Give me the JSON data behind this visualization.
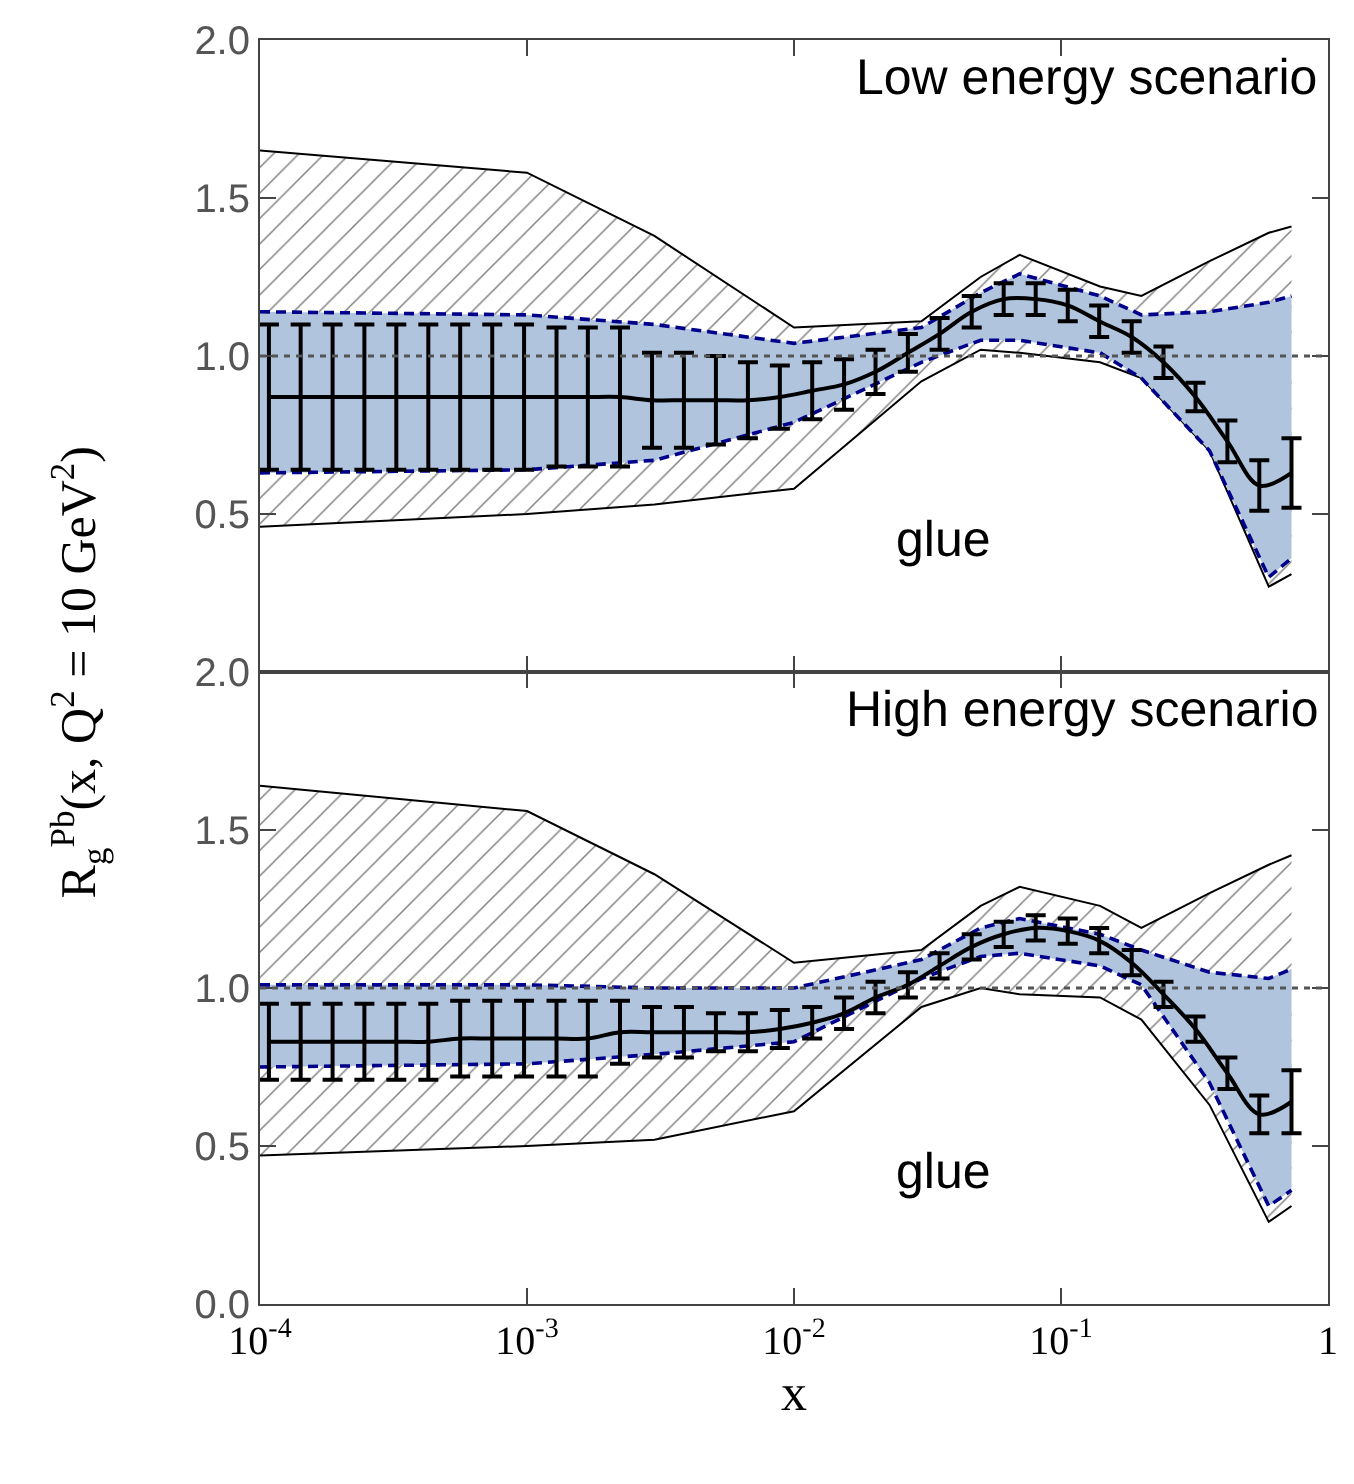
{
  "chart_data": [
    {
      "type": "line",
      "log": "x",
      "tick_labels": "y",
      "xlim": [
        0.0001,
        1
      ],
      "ylim": [
        0,
        2
      ],
      "xticks": [
        {
          "value": 0.0001,
          "label": null
        },
        {
          "value": 0.001,
          "label": null
        },
        {
          "value": 0.01,
          "label": null
        },
        {
          "value": 0.1,
          "label": null
        },
        {
          "value": 1,
          "label": null
        }
      ],
      "yticks": [
        {
          "value": 0.5,
          "label": "0.5"
        },
        {
          "value": 1,
          "label": "1.0"
        },
        {
          "value": 1.5,
          "label": "1.5"
        },
        {
          "value": 2,
          "label": "2.0"
        }
      ],
      "annotations": [
        "Low energy scenario",
        "glue"
      ],
      "ref_lines": [
        {
          "axis": "y",
          "value": 1,
          "line_style": "dotted",
          "color": "#555555"
        }
      ],
      "x": [
        0.000108,
        0.000142,
        0.000187,
        0.000246,
        0.000324,
        0.000427,
        0.000562,
        0.000741,
        0.000975,
        0.00129,
        0.00169,
        0.00223,
        0.00294,
        0.00387,
        0.0051,
        0.00672,
        0.00885,
        0.0117,
        0.0154,
        0.0202,
        0.0267,
        0.0351,
        0.0463,
        0.061,
        0.0804,
        0.106,
        0.139,
        0.184,
        0.242,
        0.319,
        0.42,
        0.553,
        0.73
      ],
      "series": [
        {
          "type": "area",
          "color": "#000000",
          "x": [
            0.0001,
            0.001,
            0.003,
            0.01,
            0.03,
            0.05,
            0.07,
            0.14,
            0.2,
            0.36,
            0.6,
            0.73
          ],
          "values": [
            null,
            null,
            null,
            null,
            null,
            null,
            null,
            null,
            null,
            null,
            null,
            null
          ],
          "lower": [
            0.46,
            0.5,
            0.53,
            0.58,
            0.92,
            1.02,
            1.01,
            0.98,
            0.93,
            0.7,
            0.27,
            0.31
          ],
          "upper": [
            1.65,
            1.58,
            1.38,
            1.09,
            1.11,
            1.25,
            1.32,
            1.22,
            1.19,
            1.3,
            1.39,
            1.41
          ]
        },
        {
          "type": "line",
          "color": "#000000",
          "line_style": "solid",
          "x": [
            0.0001,
            0.001,
            0.003,
            0.01,
            0.03,
            0.05,
            0.07,
            0.14,
            0.2,
            0.36,
            0.6,
            0.73
          ],
          "values": [
            1.65,
            1.58,
            1.38,
            1.09,
            1.11,
            1.25,
            1.32,
            1.22,
            1.19,
            1.3,
            1.39,
            1.41
          ]
        },
        {
          "type": "line",
          "color": "#000000",
          "line_style": "solid",
          "x": [
            0.0001,
            0.001,
            0.003,
            0.01,
            0.03,
            0.05,
            0.07,
            0.14,
            0.2,
            0.36,
            0.6,
            0.73
          ],
          "values": [
            0.46,
            0.5,
            0.53,
            0.58,
            0.92,
            1.02,
            1.01,
            0.98,
            0.93,
            0.7,
            0.27,
            0.31
          ]
        },
        {
          "type": "area",
          "color": "#b0c4de",
          "x": [
            0.0001,
            0.001,
            0.003,
            0.01,
            0.03,
            0.05,
            0.07,
            0.14,
            0.2,
            0.36,
            0.6,
            0.73
          ],
          "values": [
            null,
            null,
            null,
            null,
            null,
            null,
            null,
            null,
            null,
            null,
            null,
            null
          ],
          "lower": [
            0.63,
            0.64,
            0.67,
            0.79,
            0.98,
            1.05,
            1.05,
            1.01,
            0.93,
            0.7,
            0.3,
            0.36
          ],
          "upper": [
            1.14,
            1.13,
            1.1,
            1.04,
            1.09,
            1.2,
            1.26,
            1.19,
            1.13,
            1.14,
            1.17,
            1.19
          ]
        },
        {
          "type": "line",
          "color": "#00008b",
          "line_style": "dashed",
          "x": [
            0.0001,
            0.001,
            0.003,
            0.01,
            0.03,
            0.05,
            0.07,
            0.14,
            0.2,
            0.36,
            0.6,
            0.73
          ],
          "values": [
            1.14,
            1.13,
            1.1,
            1.04,
            1.09,
            1.2,
            1.26,
            1.19,
            1.13,
            1.14,
            1.17,
            1.19
          ]
        },
        {
          "type": "line",
          "color": "#00008b",
          "line_style": "dashed",
          "x": [
            0.0001,
            0.001,
            0.003,
            0.01,
            0.03,
            0.05,
            0.07,
            0.14,
            0.2,
            0.36,
            0.6,
            0.73
          ],
          "values": [
            0.63,
            0.64,
            0.67,
            0.79,
            0.98,
            1.05,
            1.05,
            1.01,
            0.93,
            0.7,
            0.3,
            0.36
          ]
        },
        {
          "type": "line",
          "color": "#000000",
          "marker": "none",
          "values": [
            0.87,
            0.87,
            0.87,
            0.87,
            0.87,
            0.87,
            0.87,
            0.87,
            0.87,
            0.87,
            0.87,
            0.87,
            0.86,
            0.86,
            0.86,
            0.86,
            0.87,
            0.89,
            0.91,
            0.95,
            1.01,
            1.07,
            1.14,
            1.18,
            1.18,
            1.16,
            1.11,
            1.06,
            0.98,
            0.87,
            0.73,
            0.59,
            0.63
          ],
          "errors": [
            0.23,
            0.23,
            0.23,
            0.23,
            0.23,
            0.23,
            0.23,
            0.23,
            0.23,
            0.22,
            0.22,
            0.22,
            0.15,
            0.15,
            0.14,
            0.12,
            0.1,
            0.09,
            0.08,
            0.07,
            0.06,
            0.05,
            0.05,
            0.05,
            0.05,
            0.05,
            0.05,
            0.05,
            0.05,
            0.045,
            0.066,
            0.08,
            0.11
          ]
        }
      ]
    },
    {
      "type": "line",
      "log": "x",
      "xlim": [
        0.0001,
        1
      ],
      "ylim": [
        0,
        2
      ],
      "xlabel": "x",
      "ylabel": "R$_{g}$$^{Pb}$(x, Q$^{2}$ = 10 GeV$^{2}$)",
      "xticks": [
        {
          "value": 0.0001,
          "label": "10$^{-4}$"
        },
        {
          "value": 0.001,
          "label": "10$^{-3}$"
        },
        {
          "value": 0.01,
          "label": "10$^{-2}$"
        },
        {
          "value": 0.1,
          "label": "10$^{-1}$"
        },
        1
      ],
      "yticks": [
        {
          "value": 0,
          "label": "0.0"
        },
        {
          "value": 0.5,
          "label": "0.5"
        },
        {
          "value": 1,
          "label": "1.0"
        },
        {
          "value": 1.5,
          "label": "1.5"
        },
        {
          "value": 2,
          "label": "2.0"
        }
      ],
      "annotations": [
        "High energy scenario",
        "glue"
      ],
      "ref_lines": [
        {
          "axis": "y",
          "value": 1,
          "line_style": "dotted",
          "color": "#555555"
        }
      ],
      "x": [
        0.000108,
        0.000142,
        0.000187,
        0.000246,
        0.000324,
        0.000427,
        0.000562,
        0.000741,
        0.000975,
        0.00129,
        0.00169,
        0.00223,
        0.00294,
        0.00387,
        0.0051,
        0.00672,
        0.00885,
        0.0117,
        0.0154,
        0.0202,
        0.0267,
        0.0351,
        0.0463,
        0.061,
        0.0804,
        0.106,
        0.139,
        0.184,
        0.242,
        0.319,
        0.42,
        0.553,
        0.73
      ],
      "series": [
        {
          "type": "area",
          "color": "#000000",
          "x": [
            0.0001,
            0.001,
            0.003,
            0.01,
            0.03,
            0.05,
            0.07,
            0.14,
            0.2,
            0.36,
            0.6,
            0.73
          ],
          "values": [
            null,
            null,
            null,
            null,
            null,
            null,
            null,
            null,
            null,
            null,
            null,
            null
          ],
          "lower": [
            0.47,
            0.5,
            0.52,
            0.61,
            0.94,
            1.0,
            0.98,
            0.97,
            0.9,
            0.63,
            0.26,
            0.31
          ],
          "upper": [
            1.64,
            1.56,
            1.36,
            1.08,
            1.12,
            1.26,
            1.32,
            1.26,
            1.19,
            1.3,
            1.39,
            1.42
          ]
        },
        {
          "type": "line",
          "color": "#000000",
          "line_style": "solid",
          "x": [
            0.0001,
            0.001,
            0.003,
            0.01,
            0.03,
            0.05,
            0.07,
            0.14,
            0.2,
            0.36,
            0.6,
            0.73
          ],
          "values": [
            1.64,
            1.56,
            1.36,
            1.08,
            1.12,
            1.26,
            1.32,
            1.26,
            1.19,
            1.3,
            1.39,
            1.42
          ]
        },
        {
          "type": "line",
          "color": "#000000",
          "line_style": "solid",
          "x": [
            0.0001,
            0.001,
            0.003,
            0.01,
            0.03,
            0.05,
            0.07,
            0.14,
            0.2,
            0.36,
            0.6,
            0.73
          ],
          "values": [
            0.47,
            0.5,
            0.52,
            0.61,
            0.94,
            1.0,
            0.98,
            0.97,
            0.9,
            0.63,
            0.26,
            0.31
          ]
        },
        {
          "type": "area",
          "color": "#b0c4de",
          "x": [
            0.0001,
            0.001,
            0.003,
            0.01,
            0.03,
            0.05,
            0.07,
            0.14,
            0.2,
            0.36,
            0.6,
            0.73
          ],
          "values": [
            null,
            null,
            null,
            null,
            null,
            null,
            null,
            null,
            null,
            null,
            null,
            null
          ],
          "lower": [
            0.75,
            0.76,
            0.79,
            0.83,
            1.03,
            1.1,
            1.11,
            1.07,
            1.01,
            0.7,
            0.31,
            0.36
          ],
          "upper": [
            1.01,
            1.01,
            1.0,
            1.0,
            1.09,
            1.19,
            1.22,
            1.17,
            1.12,
            1.05,
            1.03,
            1.06
          ]
        },
        {
          "type": "line",
          "color": "#00008b",
          "line_style": "dashed",
          "x": [
            0.0001,
            0.001,
            0.003,
            0.01,
            0.03,
            0.05,
            0.07,
            0.14,
            0.2,
            0.36,
            0.6,
            0.73
          ],
          "values": [
            1.01,
            1.01,
            1.0,
            1.0,
            1.09,
            1.19,
            1.22,
            1.17,
            1.12,
            1.05,
            1.03,
            1.06
          ]
        },
        {
          "type": "line",
          "color": "#00008b",
          "line_style": "dashed",
          "x": [
            0.0001,
            0.001,
            0.003,
            0.01,
            0.03,
            0.05,
            0.07,
            0.14,
            0.2,
            0.36,
            0.6,
            0.73
          ],
          "values": [
            0.75,
            0.76,
            0.79,
            0.83,
            1.03,
            1.1,
            1.11,
            1.07,
            1.01,
            0.7,
            0.31,
            0.36
          ]
        },
        {
          "type": "line",
          "color": "#000000",
          "marker": "none",
          "values": [
            0.83,
            0.83,
            0.83,
            0.83,
            0.83,
            0.83,
            0.84,
            0.84,
            0.84,
            0.84,
            0.84,
            0.86,
            0.86,
            0.86,
            0.86,
            0.86,
            0.87,
            0.89,
            0.92,
            0.97,
            1.01,
            1.07,
            1.13,
            1.17,
            1.19,
            1.18,
            1.15,
            1.08,
            0.98,
            0.87,
            0.73,
            0.6,
            0.64
          ],
          "errors": [
            0.12,
            0.12,
            0.12,
            0.12,
            0.12,
            0.12,
            0.12,
            0.12,
            0.12,
            0.12,
            0.12,
            0.1,
            0.08,
            0.08,
            0.06,
            0.06,
            0.06,
            0.05,
            0.05,
            0.05,
            0.04,
            0.04,
            0.04,
            0.04,
            0.04,
            0.04,
            0.04,
            0.04,
            0.04,
            0.04,
            0.05,
            0.06,
            0.1
          ]
        }
      ]
    }
  ]
}
